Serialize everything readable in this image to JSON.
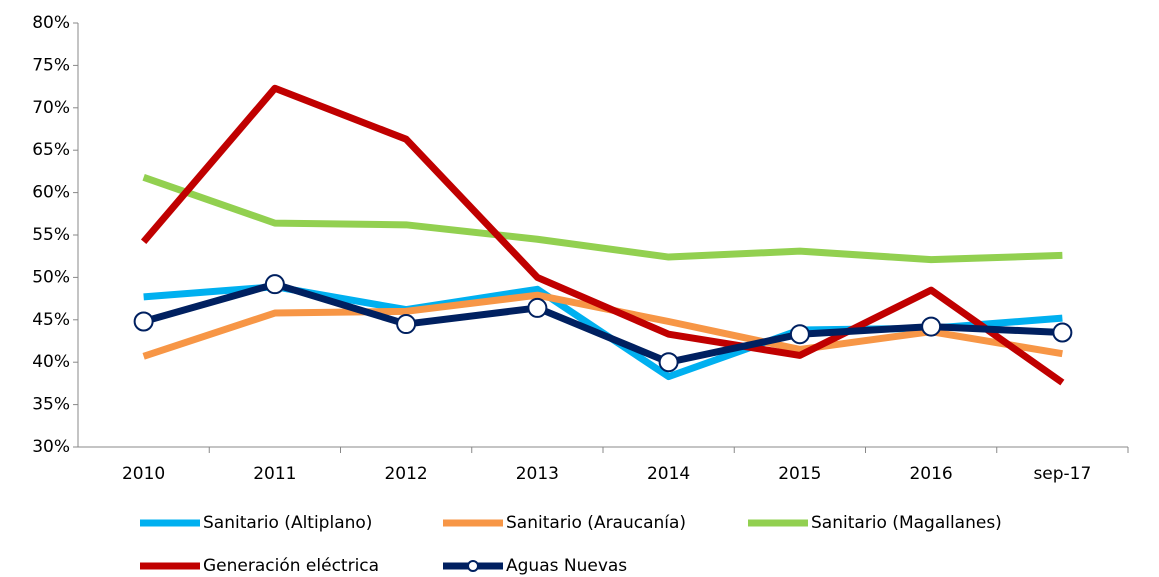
{
  "chart_data": {
    "type": "line",
    "categories": [
      "2010",
      "2011",
      "2012",
      "2013",
      "2014",
      "2015",
      "2016",
      "sep-17"
    ],
    "series": [
      {
        "name": "Sanitario (Altiplano)",
        "color": "#00b0f0",
        "values": [
          47.7,
          48.9,
          46.2,
          48.6,
          38.3,
          43.8,
          44.0,
          45.2
        ]
      },
      {
        "name": "Sanitario (Araucanía)",
        "color": "#f79646",
        "values": [
          40.7,
          45.8,
          46.0,
          47.9,
          44.8,
          41.5,
          43.6,
          41.0
        ]
      },
      {
        "name": "Sanitario (Magallanes)",
        "color": "#92d050",
        "values": [
          61.8,
          56.4,
          56.2,
          54.5,
          52.4,
          53.1,
          52.1,
          52.6
        ]
      },
      {
        "name": "Generación eléctrica",
        "color": "#c00000",
        "values": [
          54.2,
          72.3,
          66.3,
          50.0,
          43.3,
          40.8,
          48.5,
          37.6
        ]
      },
      {
        "name": "Aguas Nuevas",
        "color": "#002060",
        "marker": "circle",
        "values": [
          44.8,
          49.2,
          44.5,
          46.4,
          40.0,
          43.3,
          44.2,
          43.5
        ]
      }
    ],
    "ylim": [
      30,
      80
    ],
    "yticks": [
      {
        "value": 30,
        "label": "30%"
      },
      {
        "value": 35,
        "label": "35%"
      },
      {
        "value": 40,
        "label": "40%"
      },
      {
        "value": 45,
        "label": "45%"
      },
      {
        "value": 50,
        "label": "50%"
      },
      {
        "value": 55,
        "label": "55%"
      },
      {
        "value": 60,
        "label": "60%"
      },
      {
        "value": 65,
        "label": "65%"
      },
      {
        "value": 70,
        "label": "70%"
      },
      {
        "value": 75,
        "label": "75%"
      },
      {
        "value": 80,
        "label": "80%"
      }
    ],
    "grid": false,
    "legend": "bottom"
  }
}
